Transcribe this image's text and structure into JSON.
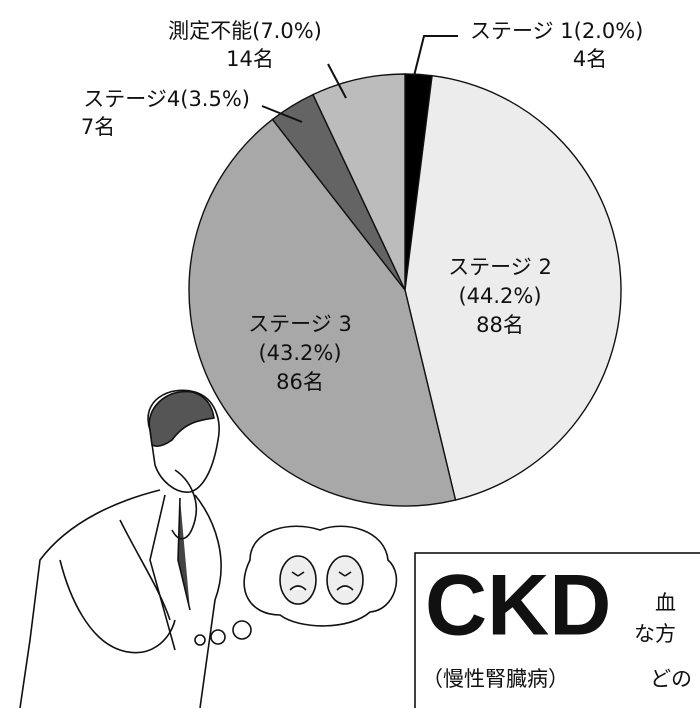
{
  "chart_data": {
    "type": "pie",
    "categories": [
      "ステージ 1",
      "ステージ 2",
      "ステージ 3",
      "ステージ4",
      "測定不能"
    ],
    "values": [
      2.0,
      44.2,
      43.2,
      3.5,
      7.0
    ],
    "value_labels": [
      "(2.0%)",
      "(44.2%)",
      "(43.2%)",
      "(3.5%)",
      "(7.0%)"
    ],
    "counts": [
      4,
      88,
      86,
      7,
      14
    ],
    "count_labels": [
      "4名",
      "88名",
      "86名",
      "7名",
      "14名"
    ],
    "colors": [
      "#000000",
      "#ececec",
      "#a8a8a8",
      "#646464",
      "#bcbcbc"
    ]
  },
  "box": {
    "title": "CKD",
    "subtitle": "（慢性腎臓病）",
    "text_lines": [
      "血",
      "な方",
      "どの"
    ]
  }
}
